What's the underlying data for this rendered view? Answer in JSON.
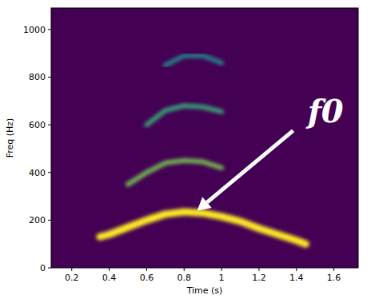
{
  "chart_data": {
    "type": "spectrogram",
    "x_label": "Time (s)",
    "y_label": "Freq (Hz)",
    "xlim": [
      0.09,
      1.73
    ],
    "ylim": [
      0,
      1090
    ],
    "xticks": [
      0.2,
      0.4,
      0.6,
      0.8,
      1.0,
      1.2,
      1.4,
      1.6
    ],
    "yticks": [
      0,
      200,
      400,
      600,
      800,
      1000
    ],
    "x": [
      0.35,
      0.4,
      0.5,
      0.6,
      0.7,
      0.8,
      0.9,
      1.0,
      1.1,
      1.2,
      1.3,
      1.4,
      1.45
    ],
    "series": [
      {
        "color": "#fde725",
        "values": [
          130,
          140,
          170,
          200,
          225,
          235,
          230,
          215,
          195,
          165,
          140,
          115,
          100
        ]
      },
      {
        "color": "#7ad151",
        "values": [
          null,
          null,
          350,
          400,
          440,
          450,
          445,
          420,
          null,
          null,
          null,
          null,
          null
        ]
      },
      {
        "color": "#35b779",
        "values": [
          null,
          null,
          null,
          600,
          660,
          680,
          675,
          655,
          null,
          null,
          null,
          null,
          null
        ]
      },
      {
        "color": "#21918c",
        "values": [
          null,
          null,
          null,
          null,
          850,
          890,
          890,
          860,
          null,
          null,
          null,
          null,
          null
        ]
      }
    ],
    "grid": false,
    "annotations": [
      {
        "text": "f0",
        "x": 0.87,
        "y": 240
      }
    ]
  }
}
